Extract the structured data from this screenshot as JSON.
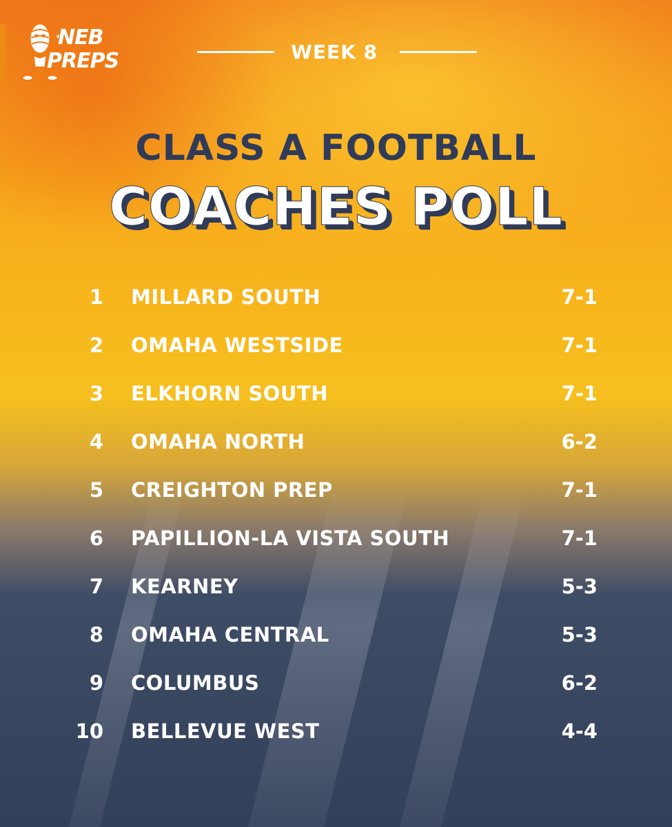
{
  "brand": {
    "logo_line1": "NEB",
    "logo_line2": "PREPS",
    "color_orange": "#ef7a14",
    "color_navy": "#2f3b58"
  },
  "header": {
    "week": "WEEK 8"
  },
  "title": {
    "line1": "CLASS A FOOTBALL",
    "line2": "COACHES POLL"
  },
  "poll": [
    {
      "rank": "1",
      "team": "MILLARD SOUTH",
      "record": "7-1"
    },
    {
      "rank": "2",
      "team": "OMAHA WESTSIDE",
      "record": "7-1"
    },
    {
      "rank": "3",
      "team": "ELKHORN SOUTH",
      "record": "7-1"
    },
    {
      "rank": "4",
      "team": "OMAHA NORTH",
      "record": "6-2"
    },
    {
      "rank": "5",
      "team": "CREIGHTON PREP",
      "record": "7-1"
    },
    {
      "rank": "6",
      "team": "PAPILLION-LA VISTA SOUTH",
      "record": "7-1"
    },
    {
      "rank": "7",
      "team": "KEARNEY",
      "record": "5-3"
    },
    {
      "rank": "8",
      "team": "OMAHA CENTRAL",
      "record": "5-3"
    },
    {
      "rank": "9",
      "team": "COLUMBUS",
      "record": "6-2"
    },
    {
      "rank": "10",
      "team": "BELLEVUE WEST",
      "record": "4-4"
    }
  ]
}
